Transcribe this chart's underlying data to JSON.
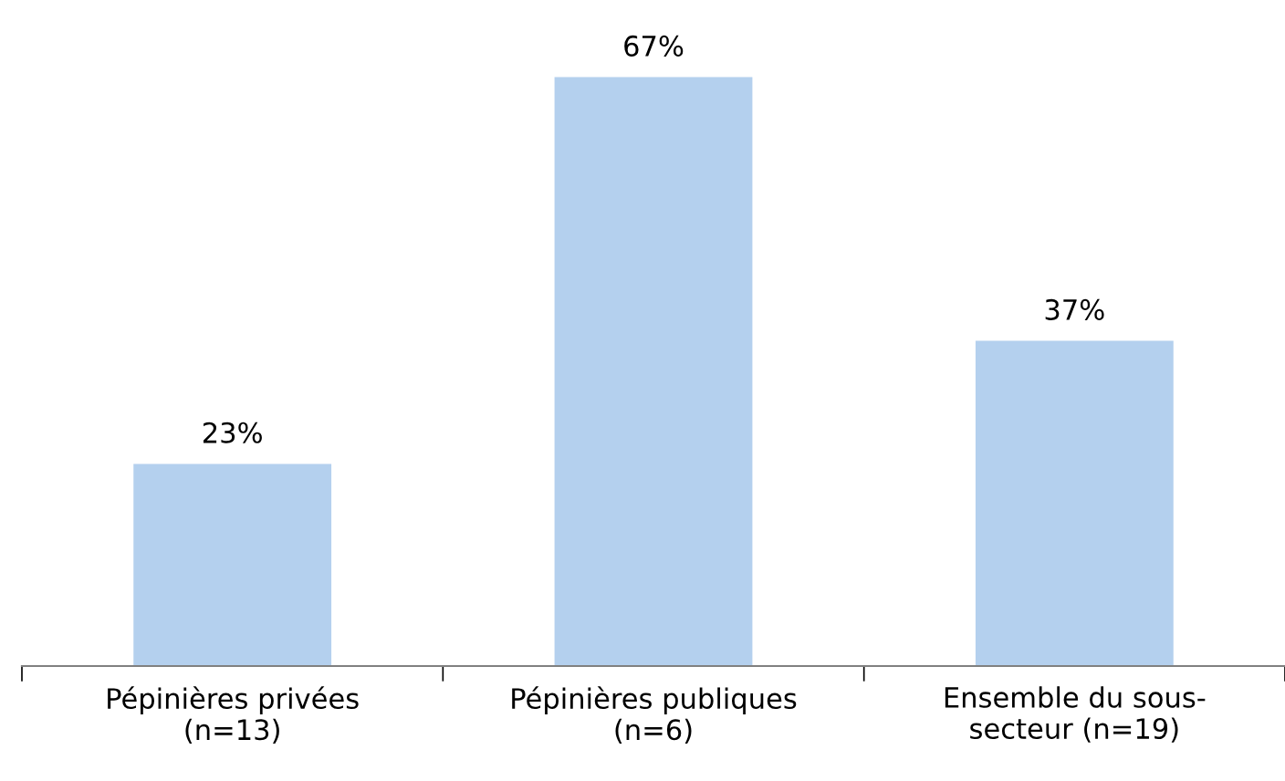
{
  "chart_data": {
    "type": "bar",
    "categories": [
      "Pépinières privées\n(n=13)",
      "Pépinières publiques\n(n=6)",
      "Ensemble du sous-\nsecteur (n=19)"
    ],
    "values": [
      23,
      67,
      37
    ],
    "value_labels": [
      "23%",
      "67%",
      "37%"
    ],
    "color": "#b4d0ee",
    "grid": false,
    "legend": false
  }
}
